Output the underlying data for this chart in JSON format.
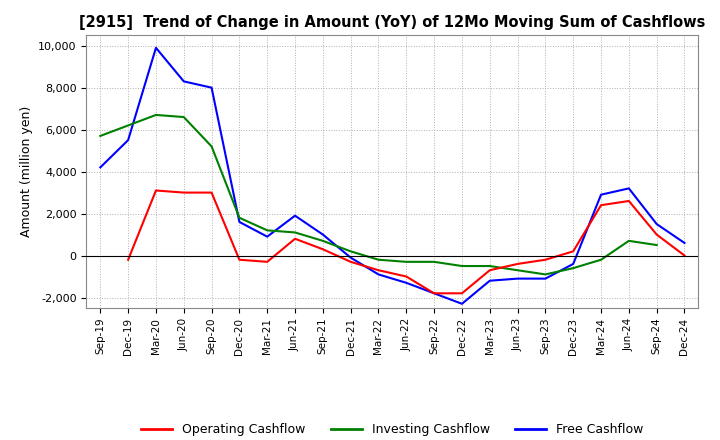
{
  "title": "[2915]  Trend of Change in Amount (YoY) of 12Mo Moving Sum of Cashflows",
  "ylabel": "Amount (million yen)",
  "ylim": [
    -2500,
    10500
  ],
  "yticks": [
    -2000,
    0,
    2000,
    4000,
    6000,
    8000,
    10000
  ],
  "x_labels": [
    "Sep-19",
    "Dec-19",
    "Mar-20",
    "Jun-20",
    "Sep-20",
    "Dec-20",
    "Mar-21",
    "Jun-21",
    "Sep-21",
    "Dec-21",
    "Mar-22",
    "Jun-22",
    "Sep-22",
    "Dec-22",
    "Mar-23",
    "Jun-23",
    "Sep-23",
    "Dec-23",
    "Mar-24",
    "Jun-24",
    "Sep-24",
    "Dec-24"
  ],
  "operating": [
    null,
    -200,
    3100,
    3000,
    3000,
    -200,
    -300,
    800,
    300,
    -300,
    -700,
    -1000,
    -1800,
    -1800,
    -700,
    -400,
    -200,
    200,
    2400,
    2600,
    1000,
    0
  ],
  "investing": [
    5700,
    6200,
    6700,
    6600,
    5200,
    1800,
    1200,
    1100,
    700,
    200,
    -200,
    -300,
    -300,
    -500,
    -500,
    -700,
    -900,
    -600,
    -200,
    700,
    500,
    null
  ],
  "free": [
    4200,
    5500,
    9900,
    8300,
    8000,
    1600,
    900,
    1900,
    1000,
    -100,
    -900,
    -1300,
    -1800,
    -2300,
    -1200,
    -1100,
    -1100,
    -400,
    2900,
    3200,
    1500,
    600
  ],
  "operating_color": "#ff0000",
  "investing_color": "#008000",
  "free_color": "#0000ff",
  "background_color": "#ffffff",
  "grid_color": "#b0b0b0"
}
